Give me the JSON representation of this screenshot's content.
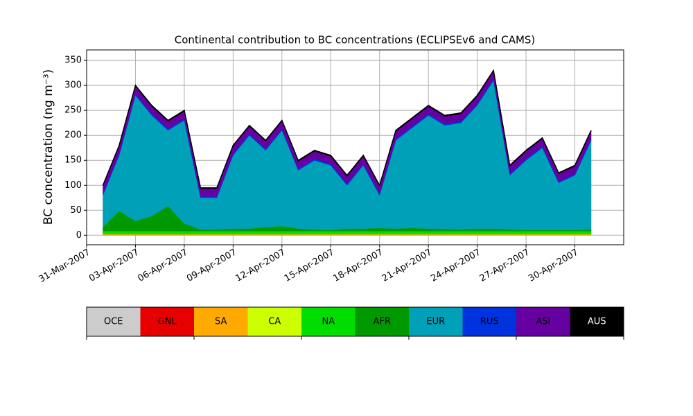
{
  "chart_data": {
    "type": "stacked_area",
    "title": "Continental contribution to BC concentrations (ECLIPSEv6 and CAMS)",
    "y_label": "BC concentration (ng m⁻³)",
    "x": [
      "2007-04-01",
      "2007-04-02",
      "2007-04-03",
      "2007-04-04",
      "2007-04-05",
      "2007-04-06",
      "2007-04-07",
      "2007-04-08",
      "2007-04-09",
      "2007-04-10",
      "2007-04-11",
      "2007-04-12",
      "2007-04-13",
      "2007-04-14",
      "2007-04-15",
      "2007-04-16",
      "2007-04-17",
      "2007-04-18",
      "2007-04-19",
      "2007-04-20",
      "2007-04-21",
      "2007-04-22",
      "2007-04-23",
      "2007-04-24",
      "2007-04-25",
      "2007-04-26",
      "2007-04-27",
      "2007-04-28",
      "2007-04-29",
      "2007-04-30",
      "2007-05-01"
    ],
    "series": [
      {
        "name": "OCE",
        "color": "#cccccc",
        "values": [
          0.5,
          0.5,
          0.5,
          0.5,
          0.5,
          0.5,
          0.5,
          0.5,
          0.5,
          0.5,
          0.5,
          0.5,
          0.5,
          0.5,
          0.5,
          0.5,
          0.5,
          0.5,
          0.5,
          0.5,
          0.5,
          0.5,
          0.5,
          0.5,
          0.5,
          0.5,
          0.5,
          0.5,
          0.5,
          0.5,
          0.5
        ]
      },
      {
        "name": "GNL",
        "color": "#e60000",
        "values": [
          0.5,
          0.5,
          0.5,
          0.5,
          0.5,
          0.5,
          0.5,
          0.5,
          0.5,
          0.5,
          0.5,
          0.5,
          0.5,
          0.5,
          0.5,
          0.5,
          0.5,
          0.5,
          0.5,
          0.5,
          0.5,
          0.5,
          0.5,
          0.5,
          0.5,
          0.5,
          0.5,
          0.5,
          0.5,
          0.5,
          0.5
        ]
      },
      {
        "name": "SA",
        "color": "#ffaa00",
        "values": [
          1,
          1,
          1,
          1,
          1,
          1,
          1,
          1,
          1,
          1,
          1,
          1,
          1,
          1,
          1,
          1,
          1,
          1,
          1,
          1,
          1,
          1,
          1,
          1,
          1,
          1,
          1,
          1,
          1,
          1,
          1
        ]
      },
      {
        "name": "CA",
        "color": "#ccff00",
        "values": [
          0.5,
          0.5,
          0.5,
          0.5,
          0.5,
          0.5,
          0.5,
          0.5,
          0.5,
          0.5,
          0.5,
          0.5,
          0.5,
          0.5,
          0.5,
          0.5,
          0.5,
          0.5,
          0.5,
          0.5,
          0.5,
          0.5,
          0.5,
          0.5,
          0.5,
          0.5,
          0.5,
          0.5,
          0.5,
          0.5,
          0.5
        ]
      },
      {
        "name": "NA",
        "color": "#00dd00",
        "values": [
          6,
          6,
          6,
          6,
          6,
          6,
          6,
          6,
          6,
          6,
          6,
          6,
          6,
          6,
          6,
          6,
          6,
          6,
          6,
          6,
          6,
          6,
          6,
          6,
          6,
          6,
          6,
          6,
          6,
          6,
          6
        ]
      },
      {
        "name": "AFR",
        "color": "#009900",
        "values": [
          8,
          40,
          20,
          30,
          50,
          15,
          3,
          3,
          5,
          5,
          8,
          10,
          5,
          3,
          2,
          5,
          5,
          6,
          5,
          6,
          5,
          4,
          3,
          5,
          5,
          3,
          2,
          2,
          2,
          2,
          3
        ]
      },
      {
        "name": "EUR",
        "color": "#00a0b8",
        "values": [
          63.5,
          111.5,
          251.5,
          201.5,
          151.5,
          206.5,
          63.5,
          63.5,
          146.5,
          186.5,
          153.5,
          191.5,
          116.5,
          138.5,
          129.5,
          86.5,
          126.5,
          65.5,
          176.5,
          200.5,
          226.5,
          207.5,
          213.5,
          246.5,
          296.5,
          108.5,
          139.5,
          164.5,
          94.5,
          109.5,
          178.5
        ]
      },
      {
        "name": "RUS",
        "color": "#0033dd",
        "values": [
          3,
          3,
          3,
          3,
          3,
          3,
          3,
          3,
          3,
          3,
          3,
          3,
          3,
          3,
          3,
          3,
          3,
          3,
          3,
          3,
          3,
          3,
          3,
          3,
          3,
          3,
          3,
          3,
          3,
          3,
          3
        ]
      },
      {
        "name": "ASI",
        "color": "#6600a0",
        "values": [
          15,
          15,
          15,
          15,
          15,
          15,
          15,
          15,
          15,
          15,
          15,
          15,
          15,
          15,
          15,
          15,
          15,
          15,
          15,
          15,
          15,
          15,
          15,
          15,
          15,
          15,
          15,
          15,
          15,
          15,
          15
        ]
      },
      {
        "name": "AUS",
        "color": "#000000",
        "values": [
          2,
          2,
          2,
          2,
          2,
          2,
          2,
          2,
          2,
          2,
          2,
          2,
          2,
          2,
          2,
          2,
          2,
          2,
          2,
          2,
          2,
          2,
          2,
          2,
          2,
          2,
          2,
          2,
          2,
          2,
          2
        ]
      }
    ],
    "xlim": [
      "2007-03-31",
      "2007-05-03"
    ],
    "xticks": [
      {
        "value": "2007-03-31",
        "label": "31-Mar-2007"
      },
      {
        "value": "2007-04-03",
        "label": "03-Apr-2007"
      },
      {
        "value": "2007-04-06",
        "label": "06-Apr-2007"
      },
      {
        "value": "2007-04-09",
        "label": "09-Apr-2007"
      },
      {
        "value": "2007-04-12",
        "label": "12-Apr-2007"
      },
      {
        "value": "2007-04-15",
        "label": "15-Apr-2007"
      },
      {
        "value": "2007-04-18",
        "label": "18-Apr-2007"
      },
      {
        "value": "2007-04-21",
        "label": "21-Apr-2007"
      },
      {
        "value": "2007-04-24",
        "label": "24-Apr-2007"
      },
      {
        "value": "2007-04-27",
        "label": "27-Apr-2007"
      },
      {
        "value": "2007-04-30",
        "label": "30-Apr-2007"
      }
    ],
    "ylim": [
      -19,
      371
    ],
    "yticks": [
      0,
      50,
      100,
      150,
      200,
      250,
      300,
      350
    ],
    "grid": true
  }
}
